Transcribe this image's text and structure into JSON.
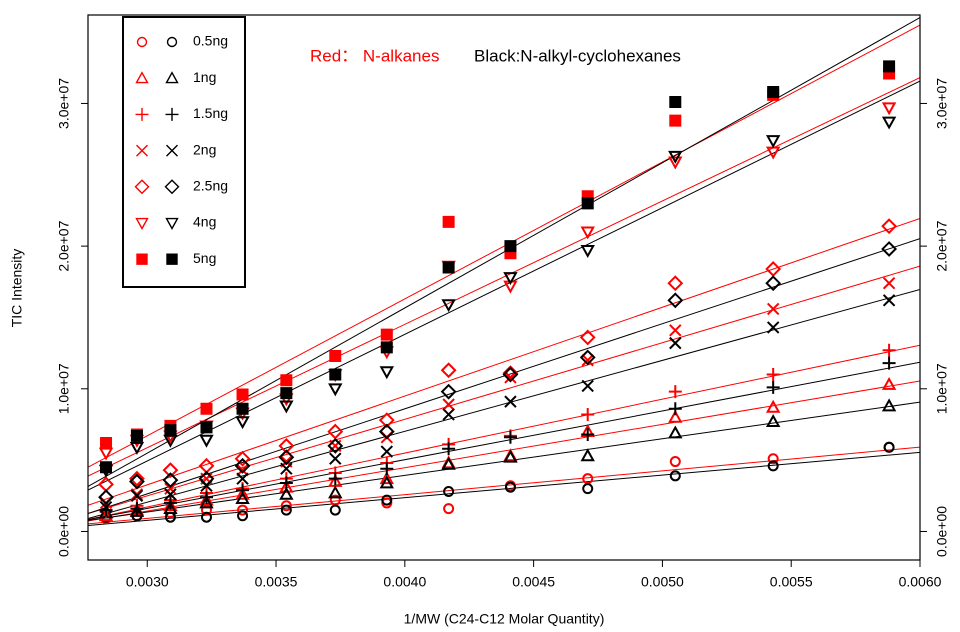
{
  "chart_data": {
    "type": "scatter",
    "xlabel": "1/MW (C24-C12 Molar Quantity)",
    "ylabel": "TIC Intensity",
    "annotations": [
      {
        "text": "Red： N-alkanes",
        "color": "#ff0000"
      },
      {
        "text": "Black:N-alkyl-cyclohexanes",
        "color": "#000000"
      }
    ],
    "xlim": [
      0.00277,
      0.006
    ],
    "ylim": [
      -2000000.0,
      36200000.0
    ],
    "xticks": [
      {
        "value": 0.003,
        "label": "0.0030"
      },
      {
        "value": 0.0035,
        "label": "0.0035"
      },
      {
        "value": 0.004,
        "label": "0.0040"
      },
      {
        "value": 0.0045,
        "label": "0.0045"
      },
      {
        "value": 0.005,
        "label": "0.0050"
      },
      {
        "value": 0.0055,
        "label": "0.0055"
      },
      {
        "value": 0.006,
        "label": "0.0060"
      }
    ],
    "yticks": [
      {
        "value": 0,
        "label": "0.0e+00"
      },
      {
        "value": 10000000.0,
        "label": "1.0e+07"
      },
      {
        "value": 20000000.0,
        "label": "2.0e+07"
      },
      {
        "value": 30000000.0,
        "label": "3.0e+07"
      }
    ],
    "legend": "upper left",
    "x": [
      0.00284,
      0.00296,
      0.00309,
      0.00323,
      0.00337,
      0.00354,
      0.00373,
      0.00393,
      0.00417,
      0.00441,
      0.00471,
      0.00505,
      0.00543,
      0.00588
    ],
    "groups": [
      {
        "name": "0.5ng",
        "marker": "circle",
        "series": [
          {
            "color": "#ff0000",
            "values": [
              900000.0,
              1100000.0,
              1300000.0,
              1500000.0,
              1500000.0,
              1800000.0,
              2200000.0,
              2000000.0,
              1600000.0,
              3200000.0,
              3700000.0,
              4900000.0,
              5100000.0,
              5900000.0
            ]
          },
          {
            "color": "#000000",
            "values": [
              1000000.0,
              1100000.0,
              1000000.0,
              1000000.0,
              1100000.0,
              1500000.0,
              1500000.0,
              2200000.0,
              2800000.0,
              3100000.0,
              3000000.0,
              3900000.0,
              4600000.0,
              5900000.0
            ]
          }
        ]
      },
      {
        "name": "1ng",
        "marker": "triangle-up",
        "series": [
          {
            "color": "#ff0000",
            "values": [
              1100000.0,
              1500000.0,
              1800000.0,
              2200000.0,
              2600000.0,
              3100000.0,
              3500000.0,
              3700000.0,
              4800000.0,
              5300000.0,
              7000000.0,
              8000000.0,
              8700000.0,
              10300000.0
            ]
          },
          {
            "color": "#000000",
            "values": [
              1300000.0,
              1400000.0,
              1600000.0,
              2000000.0,
              2300000.0,
              2600000.0,
              2700000.0,
              3400000.0,
              4700000.0,
              5200000.0,
              5300000.0,
              6900000.0,
              7700000.0,
              8800000.0
            ]
          }
        ]
      },
      {
        "name": "1.5ng",
        "marker": "plus",
        "series": [
          {
            "color": "#ff0000",
            "values": [
              1400000.0,
              1800000.0,
              2200000.0,
              2700000.0,
              3000000.0,
              3700000.0,
              4100000.0,
              4800000.0,
              6100000.0,
              6700000.0,
              8200000.0,
              9800000.0,
              11000000.0,
              12700000.0
            ]
          },
          {
            "color": "#000000",
            "values": [
              1500000.0,
              1600000.0,
              2000000.0,
              2400000.0,
              2900000.0,
              3400000.0,
              3700000.0,
              4400000.0,
              5800000.0,
              6600000.0,
              6800000.0,
              8600000.0,
              10100000.0,
              11800000.0
            ]
          }
        ]
      },
      {
        "name": "2ng",
        "marker": "cross",
        "series": [
          {
            "color": "#ff0000",
            "values": [
              2000000.0,
              2600000.0,
              3000000.0,
              3700000.0,
              4300000.0,
              4900000.0,
              6000000.0,
              6600000.0,
              8900000.0,
              10800000.0,
              12000000.0,
              14100000.0,
              15600000.0,
              17400000.0
            ]
          },
          {
            "color": "#000000",
            "values": [
              1700000.0,
              2500000.0,
              2600000.0,
              3200000.0,
              3700000.0,
              4400000.0,
              5100000.0,
              5600000.0,
              8200000.0,
              9100000.0,
              10200000.0,
              13200000.0,
              14300000.0,
              16200000.0
            ]
          }
        ]
      },
      {
        "name": "2.5ng",
        "marker": "diamond",
        "series": [
          {
            "color": "#ff0000",
            "values": [
              3300000.0,
              3700000.0,
              4300000.0,
              4600000.0,
              5100000.0,
              6000000.0,
              7000000.0,
              7800000.0,
              11300000.0,
              11100000.0,
              13600000.0,
              17400000.0,
              18400000.0,
              21400000.0
            ]
          },
          {
            "color": "#000000",
            "values": [
              2400000.0,
              3500000.0,
              3600000.0,
              3700000.0,
              4600000.0,
              5200000.0,
              6000000.0,
              7000000.0,
              9800000.0,
              11000000.0,
              12200000.0,
              16200000.0,
              17400000.0,
              19800000.0
            ]
          }
        ]
      },
      {
        "name": "4ng",
        "marker": "triangle-down",
        "series": [
          {
            "color": "#ff0000",
            "values": [
              5500000.0,
              6400000.0,
              6700000.0,
              7400000.0,
              8300000.0,
              9300000.0,
              11000000.0,
              12600000.0,
              18600000.0,
              17200000.0,
              21000000.0,
              25900000.0,
              26600000.0,
              29700000.0
            ]
          },
          {
            "color": "#000000",
            "values": [
              4300000.0,
              5900000.0,
              6400000.0,
              6400000.0,
              7700000.0,
              8800000.0,
              10000000.0,
              11200000.0,
              15900000.0,
              17800000.0,
              19700000.0,
              26300000.0,
              27400000.0,
              28700000.0
            ]
          }
        ]
      },
      {
        "name": "5ng",
        "marker": "square",
        "series": [
          {
            "color": "#ff0000",
            "values": [
              6200000.0,
              6800000.0,
              7400000.0,
              8600000.0,
              9600000.0,
              10600000.0,
              12300000.0,
              13800000.0,
              21700000.0,
              19500000.0,
              23500000.0,
              28800000.0,
              30600000.0,
              32100000.0
            ]
          },
          {
            "color": "#000000",
            "values": [
              4500000.0,
              6700000.0,
              7100000.0,
              7300000.0,
              8600000.0,
              9700000.0,
              11000000.0,
              12900000.0,
              18500000.0,
              20000000.0,
              23000000.0,
              30100000.0,
              30800000.0,
              32600000.0
            ]
          }
        ]
      }
    ]
  }
}
